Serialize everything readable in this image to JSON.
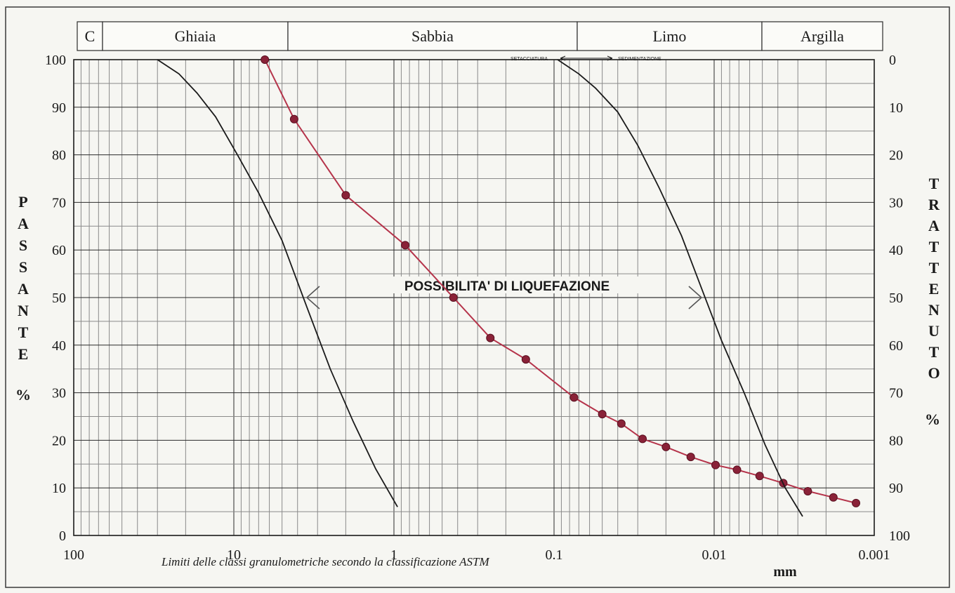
{
  "header": {
    "classes": [
      {
        "label": "C"
      },
      {
        "label": "Ghiaia"
      },
      {
        "label": "Sabbia"
      },
      {
        "label": "Limo"
      },
      {
        "label": "Argilla"
      }
    ]
  },
  "labels": {
    "left_axis_letters": [
      "P",
      "A",
      "S",
      "S",
      "A",
      "N",
      "T",
      "E"
    ],
    "left_axis_unit": "%",
    "right_axis_letters": [
      "T",
      "R",
      "A",
      "T",
      "T",
      "E",
      "N",
      "U",
      "T",
      "O"
    ],
    "right_axis_unit": "%",
    "x_unit": "mm",
    "caption": "Limiti delle classi granulometriche secondo la classificazione ASTM",
    "zone_text": "POSSIBILITA' DI LIQUEFAZIONE",
    "sieve_text": "SETACCIATURA",
    "sedimentation_text": "SEDIMENTAZIONE"
  },
  "chart_data": {
    "type": "line",
    "x_scale": "log",
    "x_reversed": true,
    "xlim": [
      100,
      0.001
    ],
    "ylim": [
      0,
      100
    ],
    "y2lim": [
      100,
      0
    ],
    "x_ticks": [
      "100",
      "10",
      "1",
      "0.1",
      "0.01",
      "0.001"
    ],
    "y_ticks": [
      "0",
      "10",
      "20",
      "30",
      "40",
      "50",
      "60",
      "70",
      "80",
      "90",
      "100"
    ],
    "y2_ticks": [
      "100",
      "90",
      "80",
      "70",
      "60",
      "50",
      "40",
      "30",
      "20",
      "10",
      "0"
    ],
    "ylabel": "PASSANTE %",
    "y2label": "TRATTENUTO %",
    "xlabel": "mm",
    "grid": true,
    "series": [
      {
        "color": "#b5334a",
        "markers": true,
        "x": [
          6.4,
          4.2,
          2.0,
          0.85,
          0.425,
          0.25,
          0.15,
          0.075,
          0.05,
          0.038,
          0.028,
          0.02,
          0.014,
          0.0098,
          0.0072,
          0.0052,
          0.0037,
          0.0026,
          0.0018,
          0.0013
        ],
        "y": [
          100,
          87.5,
          71.5,
          61,
          50,
          41.5,
          37,
          29,
          25.5,
          23.5,
          20.3,
          18.6,
          16.5,
          14.8,
          13.8,
          12.5,
          11,
          9.3,
          8,
          6.8
        ]
      },
      {
        "color": "#1a1a1a",
        "markers": false,
        "x": [
          30,
          22,
          17,
          13,
          9.5,
          7.0,
          5.0,
          3.5,
          2.5,
          1.8,
          1.3,
          0.95
        ],
        "y": [
          100,
          97,
          93,
          88,
          80,
          72,
          62,
          48,
          35,
          24,
          14,
          6
        ]
      },
      {
        "color": "#1a1a1a",
        "markers": false,
        "x": [
          0.095,
          0.07,
          0.055,
          0.04,
          0.03,
          0.022,
          0.016,
          0.012,
          0.009,
          0.0065,
          0.0048,
          0.0036,
          0.0028
        ],
        "y": [
          100,
          97,
          94,
          89,
          82,
          73,
          63,
          52,
          41,
          30,
          19,
          10,
          4
        ]
      }
    ],
    "zone": {
      "from": 3.5,
      "to": 0.012,
      "y": 50
    }
  }
}
